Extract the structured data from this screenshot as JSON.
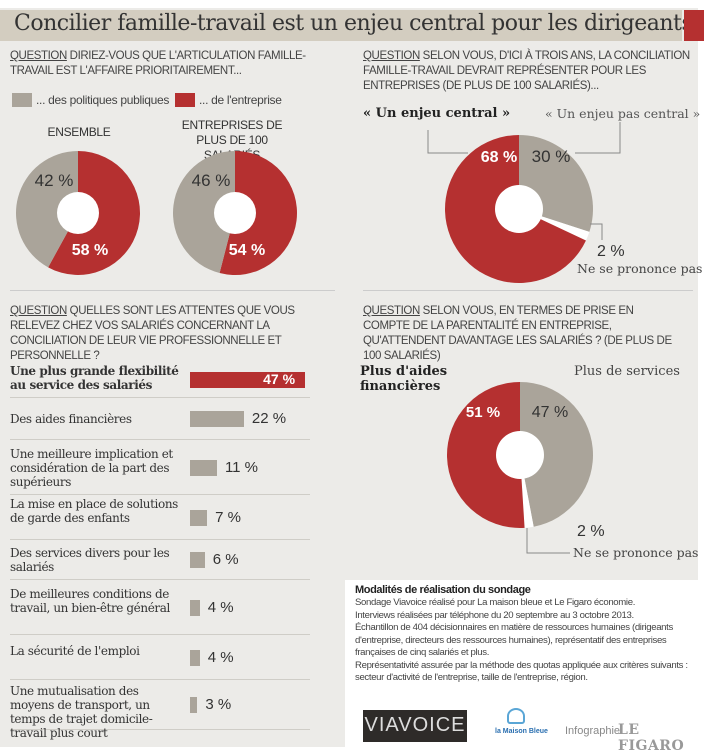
{
  "title": "Concilier famille-travail est un enjeu central pour les dirigeants",
  "colors": {
    "red": "#b53030",
    "gray": "#aaa49a",
    "title_bar": "#d3cdc0",
    "background": "#ecebe8"
  },
  "q1": {
    "question_tag": "QUESTION",
    "question": "DIRIEZ-VOUS QUE L'ARTICULATION FAMILLE-TRAVAIL EST L'AFFAIRE PRIORITAIREMENT...",
    "legend": [
      "... des politiques publiques",
      "... de l'entreprise"
    ]
  },
  "q2": {
    "question_tag": "QUESTION",
    "question": "SELON VOUS, D'ICI À TROIS ANS, LA CONCILIATION FAMILLE-TRAVAIL DEVRAIT REPRÉSENTER POUR LES ENTREPRISES (DE PLUS DE 100 SALARIÉS)..."
  },
  "q3": {
    "question_tag": "QUESTION",
    "question": "QUELLES SONT LES ATTENTES QUE VOUS RELEVEZ CHEZ VOS SALARIÉS CONCERNANT LA CONCILIATION DE LEUR VIE PROFESSIONNELLE ET PERSONNELLE ?"
  },
  "q4": {
    "question_tag": "QUESTION",
    "question": "SELON VOUS, EN TERMES DE PRISE EN COMPTE DE LA PARENTALITÉ EN ENTREPRISE, QU'ATTENDENT DAVANTAGE LES SALARIÉS ? (DE PLUS DE 100 SALARIÉS)"
  },
  "chart_data": [
    {
      "type": "pie",
      "title": "ENSEMBLE",
      "slices": [
        {
          "name": "... de l'entreprise",
          "value": 58,
          "label": "58 %"
        },
        {
          "name": "... des politiques publiques",
          "value": 42,
          "label": "42 %"
        }
      ]
    },
    {
      "type": "pie",
      "title": "ENTREPRISES DE PLUS DE 100 SALARIÉS",
      "slices": [
        {
          "name": "... de l'entreprise",
          "value": 54,
          "label": "54 %"
        },
        {
          "name": "... des politiques publiques",
          "value": 46,
          "label": "46 %"
        }
      ]
    },
    {
      "type": "pie",
      "slices": [
        {
          "name": "« Un enjeu central »",
          "value": 68,
          "label": "68 %"
        },
        {
          "name": "« Un enjeu pas central »",
          "value": 30,
          "label": "30 %"
        },
        {
          "name": "Ne se prononce pas",
          "value": 2,
          "label": "2 %"
        }
      ]
    },
    {
      "type": "bar",
      "orientation": "horizontal",
      "categories": [
        "Une plus grande flexibilité au service des salariés",
        "Des aides financières",
        "Une meilleure implication et considération de la part des supérieurs",
        "La mise en place de solutions de garde des enfants",
        "Des services divers pour les salariés",
        "De meilleures conditions de travail, un bien-être général",
        "La sécurité de l'emploi",
        "Une mutualisation des moyens de transport, un temps de trajet domicile-travail plus court"
      ],
      "values": [
        47,
        22,
        11,
        7,
        6,
        4,
        4,
        3
      ],
      "labels": [
        "47 %",
        "22 %",
        "11 %",
        "7 %",
        "6 %",
        "4 %",
        "4 %",
        "3 %"
      ]
    },
    {
      "type": "pie",
      "slices": [
        {
          "name": "Plus de services",
          "value": 47,
          "label": "47 %"
        },
        {
          "name": "Ne se prononce pas",
          "value": 2,
          "label": "2 %"
        },
        {
          "name": "Plus d'aides financières",
          "value": 51,
          "label": "51 %"
        }
      ]
    }
  ],
  "method": {
    "title": "Modalités de réalisation du sondage",
    "lines": [
      "Sondage Viavoice réalisé pour La maison bleue et Le Figaro économie.",
      "Interviews réalisées par téléphone du 20 septembre au 3 octobre 2013.",
      "Échantillon de 404 décisionnaires en matière de ressources humaines (dirigeants d'entreprise, directeurs des ressources humaines), représentatif des entreprises françaises de cinq salariés et plus.",
      "Représentativité assurée par la méthode des quotas appliquée aux critères suivants : secteur d'activité de l'entreprise, taille de l'entreprise, région."
    ]
  },
  "logos": {
    "viavoice": "VIAVOICE",
    "maison_bleue": "la Maison Bleue",
    "credit": "Infographie",
    "figaro": "LE FIGARO"
  }
}
